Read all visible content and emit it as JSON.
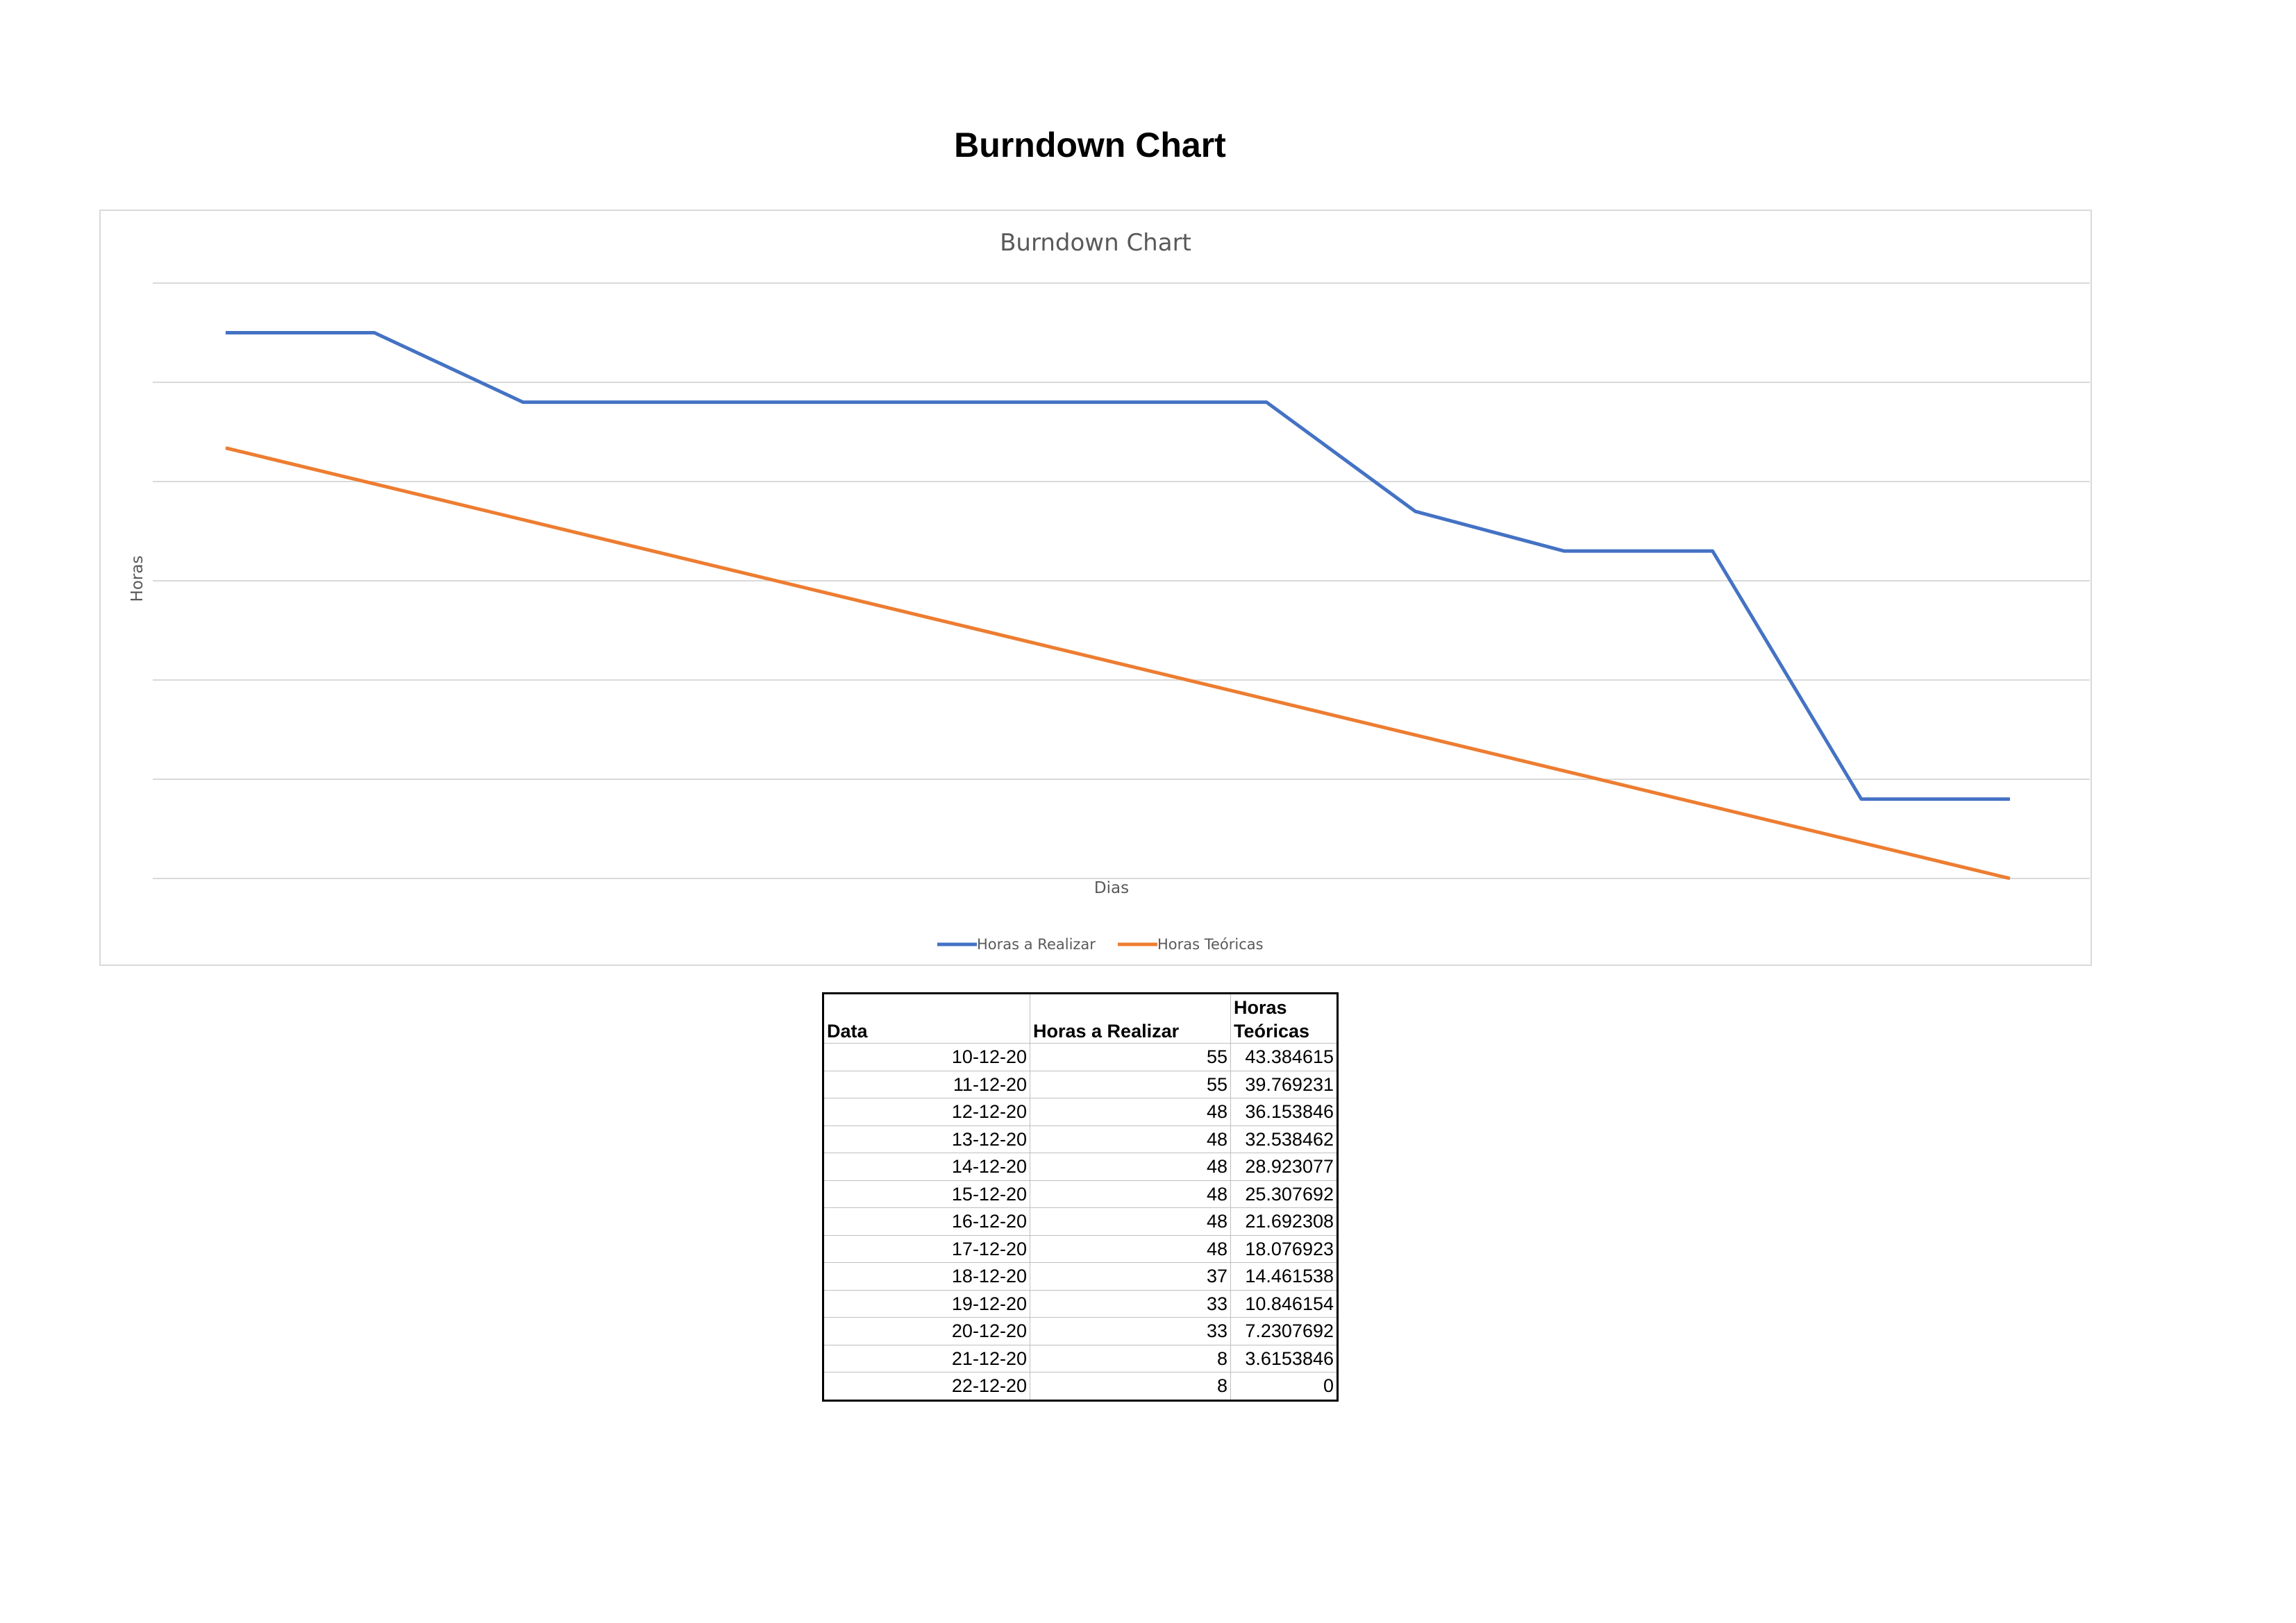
{
  "page": {
    "title": "Burndown Chart"
  },
  "chart_data": {
    "type": "line",
    "title": "Burndown Chart",
    "xlabel": "Dias",
    "ylabel": "Horas",
    "ylim": [
      0,
      60
    ],
    "grid": true,
    "legend_position": "bottom",
    "categories": [
      "10-12-20",
      "11-12-20",
      "12-12-20",
      "13-12-20",
      "14-12-20",
      "15-12-20",
      "16-12-20",
      "17-12-20",
      "18-12-20",
      "19-12-20",
      "20-12-20",
      "21-12-20",
      "22-12-20"
    ],
    "series": [
      {
        "name": "Horas a Realizar",
        "color": "#4472c4",
        "values": [
          55,
          55,
          48,
          48,
          48,
          48,
          48,
          48,
          37,
          33,
          33,
          8,
          8
        ]
      },
      {
        "name": "Horas Teóricas",
        "color": "#ed7d31",
        "values": [
          43.384615,
          39.769231,
          36.153846,
          32.538462,
          28.923077,
          25.307692,
          21.692308,
          18.076923,
          14.461538,
          10.846154,
          7.2307692,
          3.6153846,
          0
        ]
      }
    ]
  },
  "table": {
    "headers": [
      "Data",
      "Horas a Realizar",
      "Horas",
      "Teóricas"
    ],
    "rows": [
      [
        "10-12-20",
        "55",
        "43.384615"
      ],
      [
        "11-12-20",
        "55",
        "39.769231"
      ],
      [
        "12-12-20",
        "48",
        "36.153846"
      ],
      [
        "13-12-20",
        "48",
        "32.538462"
      ],
      [
        "14-12-20",
        "48",
        "28.923077"
      ],
      [
        "15-12-20",
        "48",
        "25.307692"
      ],
      [
        "16-12-20",
        "48",
        "21.692308"
      ],
      [
        "17-12-20",
        "48",
        "18.076923"
      ],
      [
        "18-12-20",
        "37",
        "14.461538"
      ],
      [
        "19-12-20",
        "33",
        "10.846154"
      ],
      [
        "20-12-20",
        "33",
        "7.2307692"
      ],
      [
        "21-12-20",
        "8",
        "3.6153846"
      ],
      [
        "22-12-20",
        "8",
        "0"
      ]
    ]
  }
}
